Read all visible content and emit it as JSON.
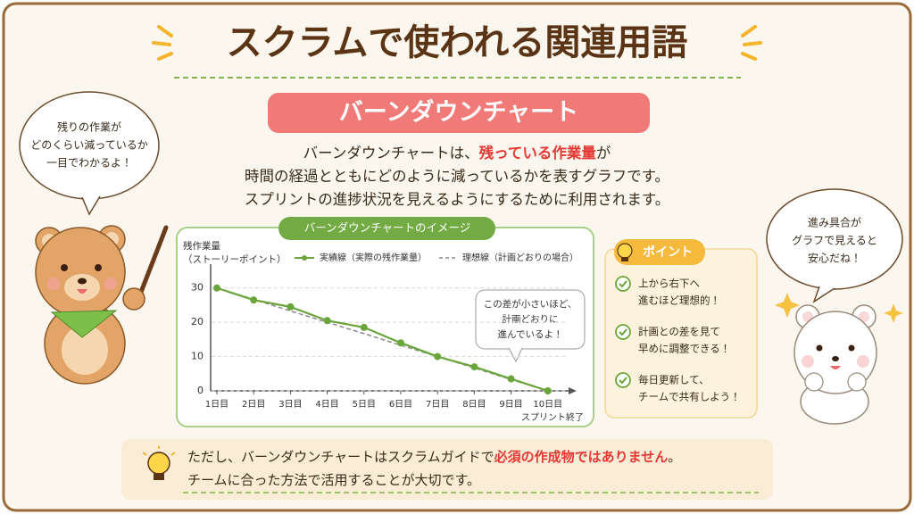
{
  "header": {
    "title": "スクラムで使われる関連用語"
  },
  "section": {
    "heading": "バーンダウンチャート",
    "description": [
      [
        {
          "text": "バーンダウンチャートは、"
        },
        {
          "text": "残っている作業量",
          "color": "#e53935"
        },
        {
          "text": "が"
        }
      ],
      [
        {
          "text": "時間の経過とともにどのように減っているかを表すグラフです。"
        }
      ],
      [
        {
          "text": "スプリントの進捗状況を見えるようにするために利用されます。"
        }
      ]
    ]
  },
  "left_bubble": {
    "lines": [
      "残りの作業が",
      "どのくらい減っているか",
      "一目でわかるよ！"
    ]
  },
  "right_bubble": {
    "lines": [
      "進み具合が",
      "グラフで見えると",
      "安心だね！"
    ]
  },
  "chart_data": {
    "type": "line",
    "title": "バーンダウンチャートのイメージ",
    "y_label": [
      "残作業量",
      "（ストーリーポイント）"
    ],
    "x_label": "スプリント終了",
    "categories": [
      "1日目",
      "2日目",
      "3日目",
      "4日目",
      "5日目",
      "6日目",
      "7日目",
      "8日目",
      "9日目",
      "10日目"
    ],
    "series": [
      {
        "name": "実績線（実際の残作業量）",
        "color": "#6aa53a",
        "style": "solid",
        "values": [
          30,
          26.5,
          24.5,
          20.5,
          18.5,
          14,
          10,
          7,
          3.5,
          0
        ]
      },
      {
        "name": "理想線（計画どおりの場合）",
        "color": "#8a8a8a",
        "style": "dashed",
        "values": [
          30,
          26.7,
          23.3,
          20,
          16.7,
          13.3,
          10,
          6.7,
          3.3,
          0
        ]
      }
    ],
    "ylim": [
      0,
      38
    ],
    "yticks": [
      0,
      10,
      20,
      30
    ],
    "grid": true,
    "annotation": [
      "この差が小さいほど、",
      "計画どおりに",
      "進んでいるよ！"
    ]
  },
  "points": {
    "heading": "ポイント",
    "items": [
      [
        "上から右下へ",
        "進むほど理想的！"
      ],
      [
        "計画との差を見て",
        "早めに調整できる！"
      ],
      [
        "毎日更新して、",
        "チームで共有しよう！"
      ]
    ]
  },
  "note": {
    "lines": [
      [
        {
          "text": "ただし、バーンダウンチャートはスクラムガイドで"
        },
        {
          "text": "必須の作成物ではありません",
          "color": "#e53935"
        },
        {
          "text": "。"
        }
      ],
      [
        {
          "text": "チームに合った方法で活用することが大切です。"
        }
      ]
    ]
  }
}
